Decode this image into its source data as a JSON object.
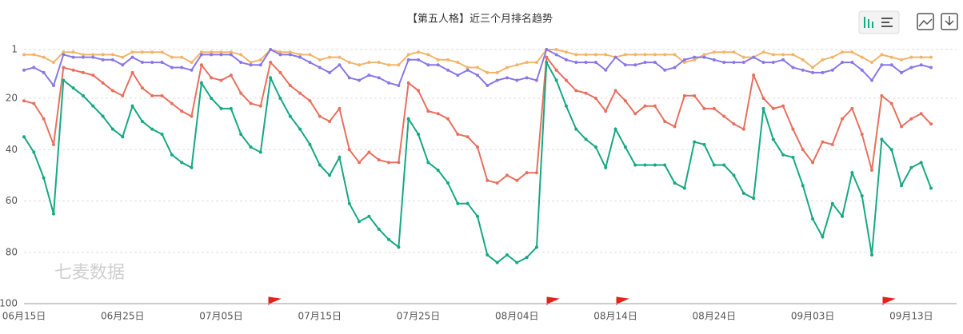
{
  "chart_data": {
    "type": "line",
    "title": "【第五人格】近三个月排名趋势",
    "watermark": "七麦数据",
    "categories": [
      "06月15日",
      null,
      null,
      null,
      null,
      null,
      null,
      null,
      null,
      null,
      "06月25日",
      null,
      null,
      null,
      null,
      null,
      null,
      null,
      null,
      null,
      "07月05日",
      null,
      null,
      null,
      null,
      null,
      null,
      null,
      null,
      null,
      "07月15日",
      null,
      null,
      null,
      null,
      null,
      null,
      null,
      null,
      null,
      "07月25日",
      null,
      null,
      null,
      null,
      null,
      null,
      null,
      null,
      null,
      "08月04日",
      null,
      null,
      null,
      null,
      null,
      null,
      null,
      null,
      null,
      "08月14日",
      null,
      null,
      null,
      null,
      null,
      null,
      null,
      null,
      null,
      "08月24日",
      null,
      null,
      null,
      null,
      null,
      null,
      null,
      null,
      null,
      "09月03日",
      null,
      null,
      null,
      null,
      null,
      null,
      null,
      null,
      null,
      "09月13日",
      null,
      null
    ],
    "ylim": [
      1,
      100
    ],
    "yticks": [
      1,
      20,
      40,
      60,
      80,
      100
    ],
    "inverse": true,
    "grid": true,
    "series": [
      {
        "color": "#f2b56b",
        "values": [
          3,
          3,
          4,
          6,
          2,
          2,
          3,
          3,
          3,
          3,
          4,
          2,
          2,
          2,
          2,
          4,
          4,
          6,
          2,
          2,
          2,
          2,
          3,
          6,
          5,
          1,
          2,
          2,
          3,
          3,
          5,
          4,
          4,
          6,
          7,
          6,
          6,
          7,
          7,
          3,
          2,
          3,
          5,
          5,
          6,
          8,
          8,
          10,
          10,
          8,
          7,
          6,
          6,
          1,
          1,
          2,
          3,
          3,
          3,
          3,
          4,
          3,
          3,
          3,
          3,
          3,
          3,
          6,
          5,
          3,
          2,
          2,
          2,
          4,
          4,
          2,
          3,
          3,
          3,
          5,
          8,
          5,
          4,
          2,
          2,
          4,
          6,
          3,
          4,
          5,
          4,
          4,
          4
        ]
      },
      {
        "color": "#8b78e6",
        "values": [
          9,
          8,
          10,
          15,
          3,
          4,
          4,
          4,
          5,
          5,
          7,
          4,
          6,
          6,
          6,
          8,
          8,
          9,
          3,
          3,
          3,
          3,
          6,
          7,
          7,
          1,
          3,
          3,
          4,
          6,
          8,
          10,
          7,
          12,
          13,
          11,
          12,
          14,
          15,
          5,
          5,
          7,
          7,
          9,
          11,
          9,
          11,
          15,
          13,
          12,
          13,
          12,
          13,
          1,
          3,
          5,
          6,
          6,
          6,
          9,
          4,
          7,
          7,
          6,
          6,
          9,
          8,
          5,
          4,
          4,
          5,
          6,
          6,
          6,
          4,
          6,
          6,
          5,
          8,
          9,
          10,
          10,
          9,
          6,
          6,
          9,
          13,
          7,
          7,
          10,
          8,
          7,
          8
        ]
      },
      {
        "color": "#e8705f",
        "values": [
          21,
          22,
          28,
          38,
          8,
          9,
          10,
          11,
          14,
          17,
          19,
          10,
          16,
          19,
          19,
          22,
          25,
          27,
          7,
          12,
          13,
          11,
          18,
          22,
          23,
          6,
          10,
          15,
          18,
          21,
          27,
          29,
          24,
          40,
          45,
          41,
          44,
          45,
          45,
          14,
          17,
          25,
          26,
          28,
          34,
          35,
          39,
          52,
          53,
          50,
          52,
          49,
          49,
          4,
          9,
          13,
          17,
          18,
          20,
          25,
          17,
          21,
          26,
          23,
          23,
          29,
          31,
          19,
          19,
          24,
          24,
          27,
          30,
          32,
          11,
          20,
          24,
          23,
          32,
          40,
          45,
          37,
          38,
          28,
          24,
          34,
          48,
          19,
          22,
          31,
          28,
          26,
          30
        ]
      },
      {
        "color": "#17a884",
        "values": [
          35,
          41,
          51,
          65,
          13,
          16,
          19,
          23,
          27,
          32,
          35,
          23,
          29,
          32,
          34,
          42,
          45,
          47,
          14,
          20,
          24,
          24,
          34,
          39,
          41,
          12,
          20,
          27,
          32,
          38,
          46,
          50,
          43,
          61,
          68,
          66,
          71,
          75,
          78,
          28,
          34,
          45,
          48,
          53,
          61,
          61,
          66,
          81,
          84,
          81,
          84,
          82,
          78,
          6,
          13,
          23,
          32,
          36,
          39,
          47,
          32,
          39,
          46,
          46,
          46,
          46,
          53,
          55,
          37,
          38,
          46,
          46,
          50,
          57,
          59,
          24,
          36,
          42,
          43,
          54,
          67,
          74,
          61,
          66,
          49,
          58,
          81,
          36,
          40,
          54,
          47,
          45,
          55
        ]
      }
    ]
  }
}
